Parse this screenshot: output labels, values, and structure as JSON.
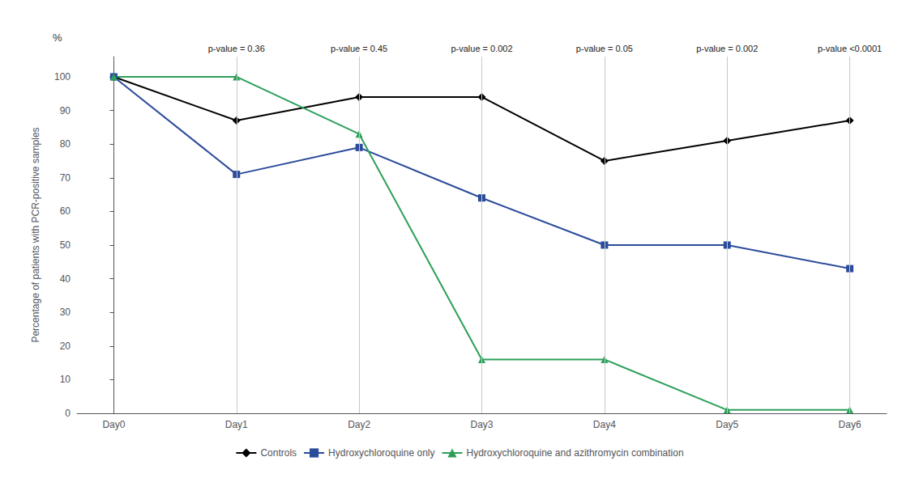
{
  "chart_data": {
    "type": "line",
    "x": [
      0,
      1,
      2,
      3,
      4,
      5,
      6
    ],
    "xlim": [
      -0.3,
      6.3
    ],
    "xticks": [
      {
        "value": 0,
        "label": "Day0"
      },
      {
        "value": 1,
        "label": "Day1"
      },
      {
        "value": 2,
        "label": "Day2"
      },
      {
        "value": 3,
        "label": "Day3"
      },
      {
        "value": 4,
        "label": "Day4"
      },
      {
        "value": 5,
        "label": "Day5"
      },
      {
        "value": 6,
        "label": "Day6"
      }
    ],
    "ylabel": "Percentage of patients with PCR-positive samples",
    "y_unit_label": "%",
    "ylim": [
      0,
      106
    ],
    "yticks": [
      0,
      10,
      20,
      30,
      40,
      50,
      60,
      70,
      80,
      90,
      100
    ],
    "series": [
      {
        "name": "Controls",
        "color": "#000000",
        "marker": "diamond",
        "values": [
          100,
          87,
          94,
          94,
          75,
          81,
          87
        ]
      },
      {
        "name": "Hydroxychloroquine only",
        "color": "#2b4b9b",
        "marker": "square",
        "values": [
          100,
          71,
          79,
          64,
          50,
          50,
          43
        ]
      },
      {
        "name": "Hydroxychloroquine and azithromycin combination",
        "color": "#2ca05a",
        "marker": "triangle",
        "values": [
          100,
          100,
          83,
          16,
          16,
          1,
          1
        ]
      }
    ],
    "annotations": [
      {
        "x": 1,
        "text": "p-value = 0.36"
      },
      {
        "x": 2,
        "text": "p-value = 0.45"
      },
      {
        "x": 3,
        "text": "p-value = 0.002"
      },
      {
        "x": 4,
        "text": "p-value = 0.05"
      },
      {
        "x": 5,
        "text": "p-value = 0.002"
      },
      {
        "x": 6,
        "text": "p-value <0.0001"
      }
    ],
    "grid": true,
    "legend": "bottom"
  }
}
